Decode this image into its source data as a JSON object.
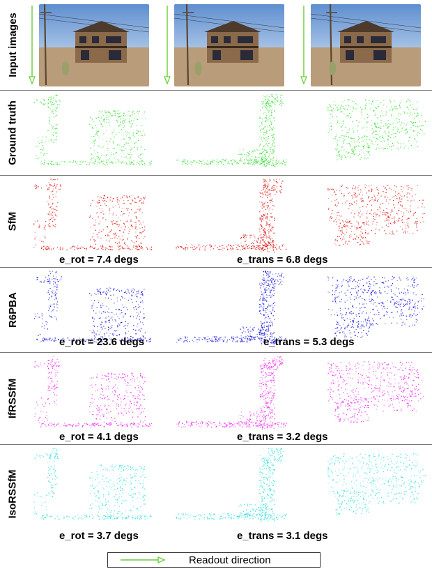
{
  "rows": [
    {
      "label": "Input images"
    },
    {
      "label": "Ground truth",
      "color": "#33dd33"
    },
    {
      "label": "SfM",
      "color": "#dd1111",
      "e_rot": "e_rot = 7.4 degs",
      "e_trans": "e_trans = 6.8 degs"
    },
    {
      "label": "R6PBA",
      "color": "#1111dd",
      "e_rot": "e_rot = 23.6 degs",
      "e_trans": "e_trans = 5.3 degs"
    },
    {
      "label": "IfRSSfM",
      "color": "#ee22ee",
      "e_rot": "e_rot = 4.1 degs",
      "e_trans": "e_trans = 3.2 degs"
    },
    {
      "label": "IsoRSSfM",
      "color": "#33dddd",
      "e_rot": "e_rot = 3.7 degs",
      "e_trans": "e_trans = 3.1 degs"
    }
  ],
  "legend": {
    "text": "Readout direction",
    "arrow_color": "#66cc33"
  },
  "colors": {
    "sky": "#5f8fd0",
    "ground": "#b99c7a",
    "house": "#8a6a4a"
  }
}
